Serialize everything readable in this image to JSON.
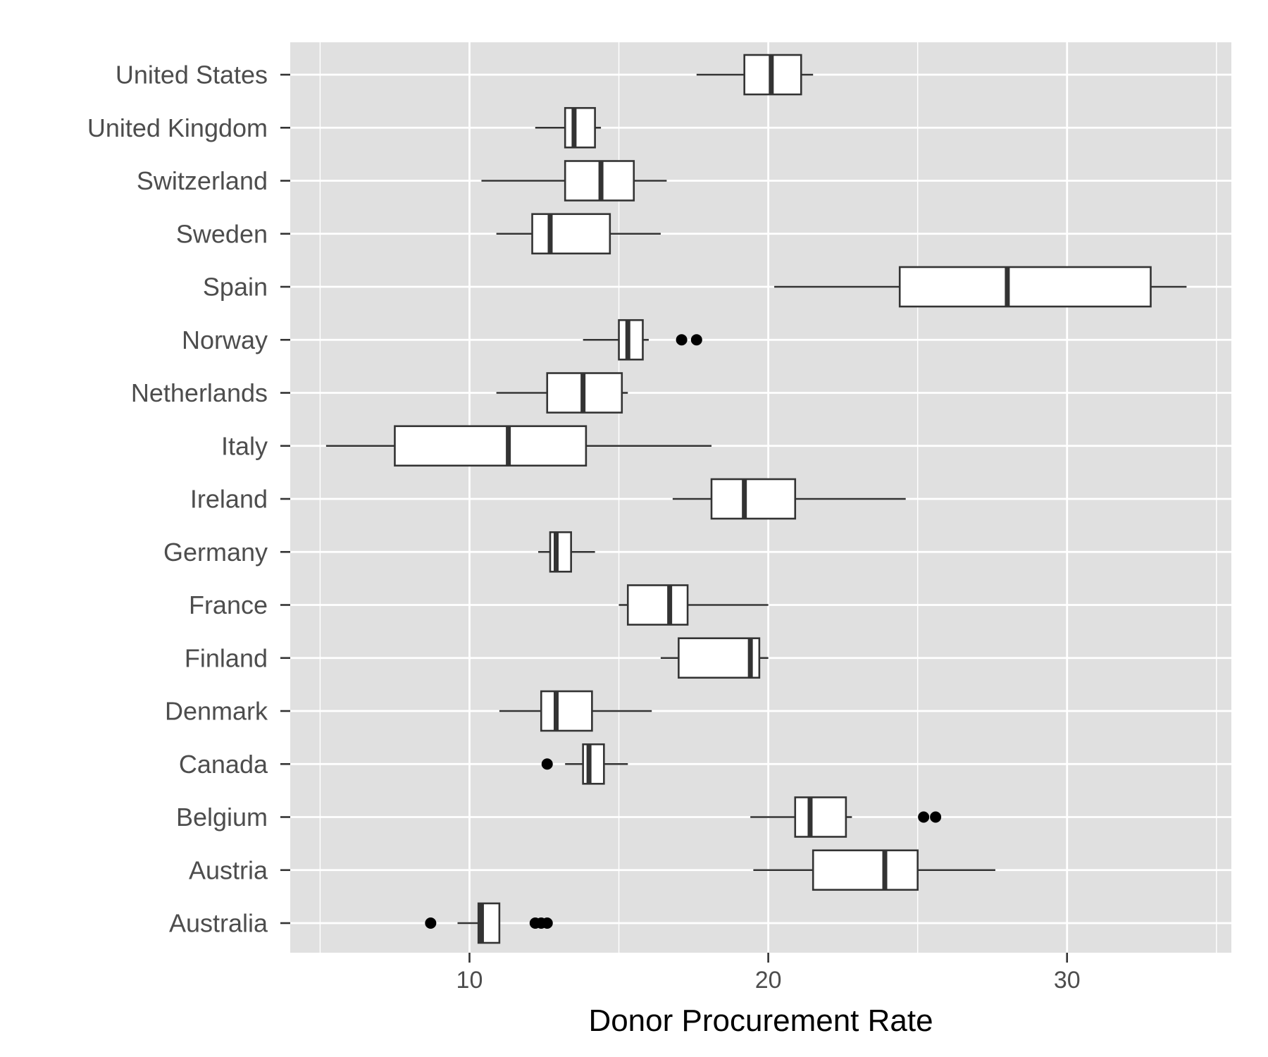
{
  "chart_data": {
    "type": "boxplot",
    "orientation": "horizontal",
    "xlabel": "Donor Procurement Rate",
    "ylabel": "",
    "xlim": [
      4,
      35.5
    ],
    "xticks": [
      10,
      20,
      30
    ],
    "grid": true,
    "legend": "none",
    "colors": {
      "panel": "#e0e0e0",
      "grid": "#ffffff",
      "box_fill": "#ffffff",
      "box_stroke": "#333333",
      "outlier": "#000000"
    },
    "categories": [
      "United States",
      "United Kingdom",
      "Switzerland",
      "Sweden",
      "Spain",
      "Norway",
      "Netherlands",
      "Italy",
      "Ireland",
      "Germany",
      "France",
      "Finland",
      "Denmark",
      "Canada",
      "Belgium",
      "Austria",
      "Australia"
    ],
    "boxes": [
      {
        "label": "United States",
        "whisker_low": 17.6,
        "q1": 19.2,
        "median": 20.1,
        "q3": 21.1,
        "whisker_high": 21.5,
        "outliers": []
      },
      {
        "label": "United Kingdom",
        "whisker_low": 12.2,
        "q1": 13.2,
        "median": 13.5,
        "q3": 14.2,
        "whisker_high": 14.4,
        "outliers": []
      },
      {
        "label": "Switzerland",
        "whisker_low": 10.4,
        "q1": 13.2,
        "median": 14.4,
        "q3": 15.5,
        "whisker_high": 16.6,
        "outliers": []
      },
      {
        "label": "Sweden",
        "whisker_low": 10.9,
        "q1": 12.1,
        "median": 12.7,
        "q3": 14.7,
        "whisker_high": 16.4,
        "outliers": []
      },
      {
        "label": "Spain",
        "whisker_low": 20.2,
        "q1": 24.4,
        "median": 28.0,
        "q3": 32.8,
        "whisker_high": 34.0,
        "outliers": []
      },
      {
        "label": "Norway",
        "whisker_low": 13.8,
        "q1": 15.0,
        "median": 15.3,
        "q3": 15.8,
        "whisker_high": 16.0,
        "outliers": [
          17.1,
          17.6
        ]
      },
      {
        "label": "Netherlands",
        "whisker_low": 10.9,
        "q1": 12.6,
        "median": 13.8,
        "q3": 15.1,
        "whisker_high": 15.3,
        "outliers": []
      },
      {
        "label": "Italy",
        "whisker_low": 5.2,
        "q1": 7.5,
        "median": 11.3,
        "q3": 13.9,
        "whisker_high": 18.1,
        "outliers": []
      },
      {
        "label": "Ireland",
        "whisker_low": 16.8,
        "q1": 18.1,
        "median": 19.2,
        "q3": 20.9,
        "whisker_high": 24.6,
        "outliers": []
      },
      {
        "label": "Germany",
        "whisker_low": 12.3,
        "q1": 12.7,
        "median": 12.9,
        "q3": 13.4,
        "whisker_high": 14.2,
        "outliers": []
      },
      {
        "label": "France",
        "whisker_low": 15.0,
        "q1": 15.3,
        "median": 16.7,
        "q3": 17.3,
        "whisker_high": 20.0,
        "outliers": []
      },
      {
        "label": "Finland",
        "whisker_low": 16.4,
        "q1": 17.0,
        "median": 19.4,
        "q3": 19.7,
        "whisker_high": 20.0,
        "outliers": []
      },
      {
        "label": "Denmark",
        "whisker_low": 11.0,
        "q1": 12.4,
        "median": 12.9,
        "q3": 14.1,
        "whisker_high": 16.1,
        "outliers": []
      },
      {
        "label": "Canada",
        "whisker_low": 13.2,
        "q1": 13.8,
        "median": 14.0,
        "q3": 14.5,
        "whisker_high": 15.3,
        "outliers": [
          12.6
        ]
      },
      {
        "label": "Belgium",
        "whisker_low": 19.4,
        "q1": 20.9,
        "median": 21.4,
        "q3": 22.6,
        "whisker_high": 22.8,
        "outliers": [
          25.2,
          25.6
        ]
      },
      {
        "label": "Austria",
        "whisker_low": 19.5,
        "q1": 21.5,
        "median": 23.9,
        "q3": 25.0,
        "whisker_high": 27.6,
        "outliers": []
      },
      {
        "label": "Australia",
        "whisker_low": 9.6,
        "q1": 10.3,
        "median": 10.4,
        "q3": 11.0,
        "whisker_high": 11.0,
        "outliers": [
          8.7,
          12.2,
          12.4,
          12.6
        ]
      }
    ]
  }
}
